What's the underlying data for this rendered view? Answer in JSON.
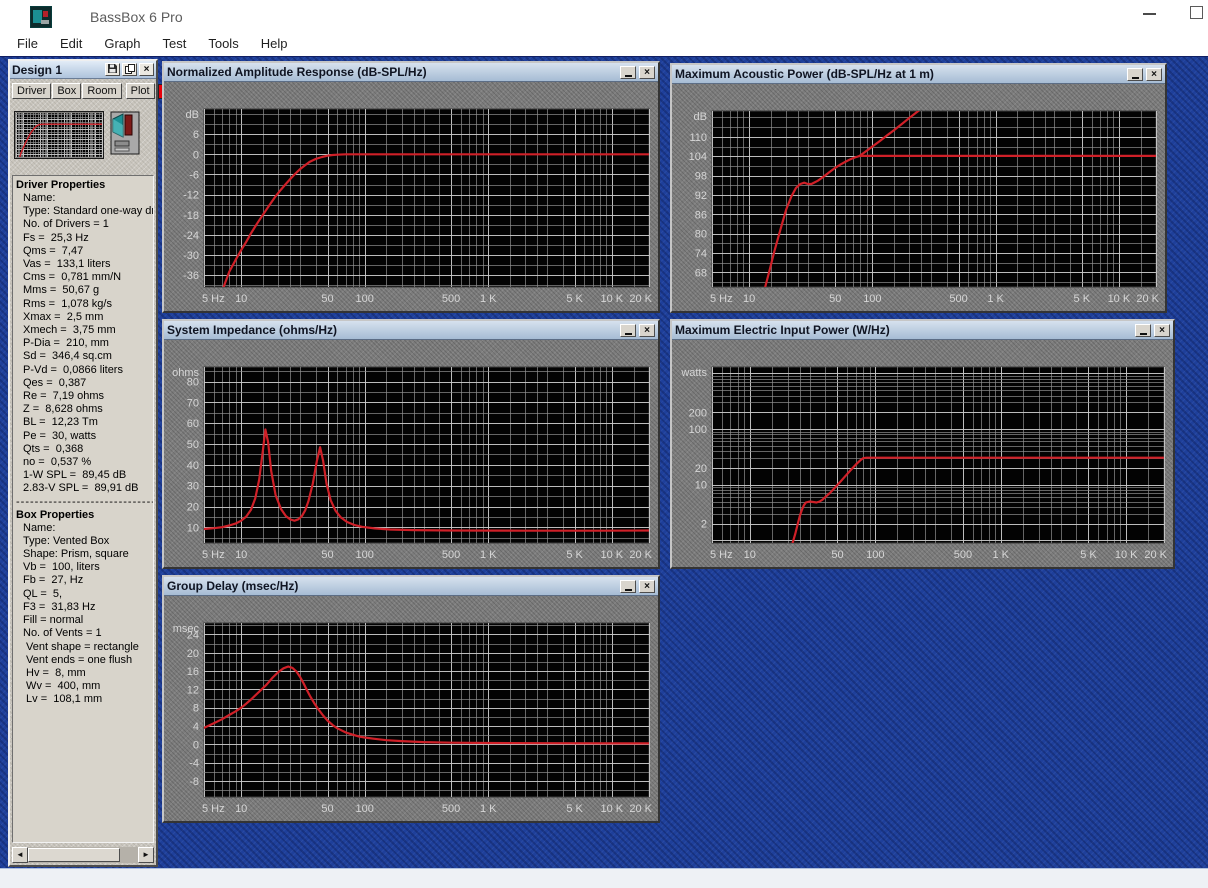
{
  "window": {
    "title": "BassBox 6 Pro"
  },
  "icons": {
    "close": "×",
    "scroll_left": "◄",
    "scroll_right": "►"
  },
  "menu": {
    "items": [
      "File",
      "Edit",
      "Graph",
      "Test",
      "Tools",
      "Help"
    ]
  },
  "design_panel": {
    "title": "Design 1",
    "tabs": [
      "Driver",
      "Box",
      "Room",
      "Plot"
    ],
    "driver_properties": {
      "header": "Driver Properties",
      "lines": [
        "Name:",
        "Type: Standard one-way driv",
        "No. of Drivers = 1",
        "Fs =  25,3 Hz",
        "Qms =  7,47",
        "Vas =  133,1 liters",
        "Cms =  0,781 mm/N",
        "Mms =  50,67 g",
        "Rms =  1,078 kg/s",
        "Xmax =  2,5 mm",
        "Xmech =  3,75 mm",
        "P-Dia =  210, mm",
        "Sd =  346,4 sq.cm",
        "P-Vd =  0,0866 liters",
        "Qes =  0,387",
        "Re =  7,19 ohms",
        "Z =  8,628 ohms",
        "BL =  12,23 Tm",
        "Pe =  30, watts",
        "Qts =  0,368",
        "no =  0,537 %",
        "1-W SPL =  89,45 dB",
        "2.83-V SPL =  89,91 dB"
      ]
    },
    "separator": "----------------------------------------",
    "box_properties": {
      "header": "Box Properties",
      "lines": [
        "Name:",
        "Type: Vented Box",
        "Shape: Prism, square",
        "Vb =  100, liters",
        "Fb =  27, Hz",
        "QL =  5,",
        "F3 =  31,83 Hz",
        "Fill = normal",
        "No. of Vents = 1",
        " Vent shape = rectangle",
        " Vent ends = one flush",
        " Hv =  8, mm",
        " Wv =  400, mm",
        " Lv =  108,1 mm"
      ]
    }
  },
  "colors": {
    "curve": "#d02028",
    "desktop": "#1e3f9a",
    "plot_bg": "#030303",
    "grid_minor": "#8f8f8f",
    "grid_major": "#c8c8c8",
    "tick_label": "#d6d6d6",
    "swatch_red": "#e8000a"
  },
  "chart_data": [
    {
      "id": "normalized-amplitude-response",
      "type": "line",
      "title": "Normalized Amplitude Response (dB-SPL/Hz)",
      "unit": "dB",
      "xscale": "log",
      "xlim": [
        5,
        20000
      ],
      "yscale": "linear",
      "ylim": [
        -39.5,
        13.5
      ],
      "yticks": [
        6,
        0,
        -6,
        -12,
        -18,
        -24,
        -30,
        -36
      ],
      "y_minor_step": 3,
      "xticks": [
        [
          5,
          "5 Hz"
        ],
        [
          10,
          "10"
        ],
        [
          50,
          "50"
        ],
        [
          100,
          "100"
        ],
        [
          500,
          "500"
        ],
        [
          1000,
          "1 K"
        ],
        [
          5000,
          "5 K"
        ],
        [
          10000,
          "10 K"
        ],
        [
          20000,
          "20 K"
        ]
      ],
      "series": [
        {
          "name": "amplitude",
          "points": [
            [
              7.2,
              -39.5
            ],
            [
              8,
              -35
            ],
            [
              9,
              -31.5
            ],
            [
              10,
              -28.5
            ],
            [
              11,
              -26
            ],
            [
              12,
              -23.5
            ],
            [
              13.5,
              -20.5
            ],
            [
              15,
              -18
            ],
            [
              17,
              -15
            ],
            [
              19,
              -12.5
            ],
            [
              21,
              -10.5
            ],
            [
              23,
              -8.8
            ],
            [
              25,
              -7.3
            ],
            [
              27,
              -6
            ],
            [
              30,
              -4.4
            ],
            [
              33,
              -3.2
            ],
            [
              36,
              -2.2
            ],
            [
              40,
              -1.4
            ],
            [
              45,
              -0.8
            ],
            [
              50,
              -0.4
            ],
            [
              55,
              -0.2
            ],
            [
              60,
              -0.1
            ],
            [
              70,
              0
            ],
            [
              100,
              0
            ],
            [
              1000,
              0
            ],
            [
              20000,
              0
            ]
          ]
        }
      ]
    },
    {
      "id": "maximum-acoustic-power",
      "type": "line",
      "title": "Maximum Acoustic Power (dB-SPL/Hz at 1 m)",
      "unit": "dB",
      "xscale": "log",
      "xlim": [
        5,
        20000
      ],
      "yscale": "linear",
      "ylim": [
        63.5,
        118
      ],
      "yticks": [
        110,
        104,
        98,
        92,
        86,
        80,
        74,
        68
      ],
      "y_minor_step": 3,
      "xticks": [
        [
          5,
          "5 Hz"
        ],
        [
          10,
          "10"
        ],
        [
          50,
          "50"
        ],
        [
          100,
          "100"
        ],
        [
          500,
          "500"
        ],
        [
          1000,
          "1 K"
        ],
        [
          5000,
          "5 K"
        ],
        [
          10000,
          "10 K"
        ],
        [
          20000,
          "20 K"
        ]
      ],
      "series": [
        {
          "name": "excursion-limited",
          "points": [
            [
              13.5,
              63.5
            ],
            [
              14.5,
              68
            ],
            [
              16,
              74.5
            ],
            [
              18,
              81.5
            ],
            [
              20,
              87.5
            ],
            [
              22,
              91.5
            ],
            [
              24,
              94.2
            ],
            [
              26,
              95.4
            ],
            [
              28,
              95.8
            ],
            [
              30,
              95.4
            ],
            [
              32,
              95.4
            ],
            [
              34,
              95.9
            ],
            [
              36,
              96.4
            ],
            [
              40,
              97.6
            ],
            [
              45,
              99.1
            ],
            [
              50,
              100.4
            ],
            [
              55,
              101.4
            ],
            [
              60,
              102.2
            ],
            [
              66,
              103
            ],
            [
              72,
              103.6
            ],
            [
              79,
              104.1
            ]
          ]
        },
        {
          "name": "thermal-limit-flat",
          "points": [
            [
              79,
              104.1
            ],
            [
              20000,
              104.1
            ]
          ]
        },
        {
          "name": "excursion-rising",
          "points": [
            [
              79,
              104.1
            ],
            [
              90,
              105.7
            ],
            [
              100,
              107
            ],
            [
              115,
              108.7
            ],
            [
              130,
              110.3
            ],
            [
              150,
              112.1
            ],
            [
              175,
              114.1
            ],
            [
              200,
              115.9
            ],
            [
              230,
              117.7
            ],
            [
              245,
              118.5
            ]
          ]
        }
      ]
    },
    {
      "id": "system-impedance",
      "type": "line",
      "title": "System Impedance (ohms/Hz)",
      "unit": "ohms",
      "xscale": "log",
      "xlim": [
        5,
        20000
      ],
      "yscale": "linear",
      "ylim": [
        2.5,
        87
      ],
      "yticks": [
        80,
        70,
        60,
        50,
        40,
        30,
        20,
        10
      ],
      "y_minor_step": 5,
      "xticks": [
        [
          5,
          "5 Hz"
        ],
        [
          10,
          "10"
        ],
        [
          50,
          "50"
        ],
        [
          100,
          "100"
        ],
        [
          500,
          "500"
        ],
        [
          1000,
          "1 K"
        ],
        [
          5000,
          "5 K"
        ],
        [
          10000,
          "10 K"
        ],
        [
          20000,
          "20 K"
        ]
      ],
      "series": [
        {
          "name": "impedance",
          "points": [
            [
              5,
              9.2
            ],
            [
              6,
              9.6
            ],
            [
              7,
              10.1
            ],
            [
              8,
              10.9
            ],
            [
              9,
              11.8
            ],
            [
              10,
              13.2
            ],
            [
              11,
              15.2
            ],
            [
              12,
              18.5
            ],
            [
              13,
              24
            ],
            [
              14,
              33
            ],
            [
              15,
              47
            ],
            [
              15.7,
              57
            ],
            [
              16.5,
              51
            ],
            [
              17.5,
              37
            ],
            [
              19,
              25.5
            ],
            [
              21,
              18.8
            ],
            [
              23,
              15.4
            ],
            [
              25,
              13.8
            ],
            [
              27,
              13.2
            ],
            [
              29,
              13.9
            ],
            [
              31,
              15.4
            ],
            [
              33,
              18.2
            ],
            [
              35,
              22.5
            ],
            [
              38,
              31
            ],
            [
              41,
              42
            ],
            [
              43.5,
              48.5
            ],
            [
              46,
              42
            ],
            [
              49,
              31
            ],
            [
              53,
              23
            ],
            [
              58,
              18
            ],
            [
              64,
              14.8
            ],
            [
              72,
              12.6
            ],
            [
              82,
              11.2
            ],
            [
              95,
              10.3
            ],
            [
              120,
              9.5
            ],
            [
              160,
              9
            ],
            [
              250,
              8.7
            ],
            [
              500,
              8.5
            ],
            [
              2000,
              8.4
            ],
            [
              8000,
              8.4
            ],
            [
              20000,
              8.5
            ]
          ]
        }
      ]
    },
    {
      "id": "maximum-electric-input-power",
      "type": "line",
      "title": "Maximum Electric Input Power (W/Hz)",
      "unit": "watts",
      "xscale": "log",
      "xlim": [
        5,
        20000
      ],
      "yscale": "log",
      "ylim": [
        0.9,
        1300
      ],
      "yticks": [
        200,
        100,
        20,
        10,
        2
      ],
      "xticks": [
        [
          5,
          "5 Hz"
        ],
        [
          10,
          "10"
        ],
        [
          50,
          "50"
        ],
        [
          100,
          "100"
        ],
        [
          500,
          "500"
        ],
        [
          1000,
          "1 K"
        ],
        [
          5000,
          "5 K"
        ],
        [
          10000,
          "10 K"
        ],
        [
          20000,
          "20 K"
        ]
      ],
      "series": [
        {
          "name": "max-input-power",
          "points": [
            [
              22,
              0.92
            ],
            [
              23,
              1.3
            ],
            [
              24,
              1.9
            ],
            [
              25,
              2.7
            ],
            [
              26,
              3.5
            ],
            [
              27,
              4.3
            ],
            [
              28,
              4.8
            ],
            [
              30,
              5
            ],
            [
              32,
              4.9
            ],
            [
              34,
              4.8
            ],
            [
              36,
              5
            ],
            [
              38,
              5.4
            ],
            [
              40,
              6
            ],
            [
              44,
              7.3
            ],
            [
              48,
              9
            ],
            [
              53,
              11.5
            ],
            [
              58,
              14.5
            ],
            [
              64,
              18.5
            ],
            [
              70,
              23
            ],
            [
              76,
              27.5
            ],
            [
              80,
              30
            ],
            [
              85,
              30.6
            ],
            [
              100,
              30.6
            ],
            [
              1000,
              30.6
            ],
            [
              20000,
              30.6
            ]
          ]
        }
      ]
    },
    {
      "id": "group-delay",
      "type": "line",
      "title": "Group Delay (msec/Hz)",
      "unit": "msec",
      "xscale": "log",
      "xlim": [
        5,
        20000
      ],
      "yscale": "linear",
      "ylim": [
        -11.5,
        26.5
      ],
      "yticks": [
        24,
        20,
        16,
        12,
        8,
        4,
        0,
        -4,
        -8
      ],
      "y_minor_step": 2,
      "xticks": [
        [
          5,
          "5 Hz"
        ],
        [
          10,
          "10"
        ],
        [
          50,
          "50"
        ],
        [
          100,
          "100"
        ],
        [
          500,
          "500"
        ],
        [
          1000,
          "1 K"
        ],
        [
          5000,
          "5 K"
        ],
        [
          10000,
          "10 K"
        ],
        [
          20000,
          "20 K"
        ]
      ],
      "series": [
        {
          "name": "group-delay",
          "points": [
            [
              5,
              3.6
            ],
            [
              6,
              4.6
            ],
            [
              7,
              5.5
            ],
            [
              8,
              6.4
            ],
            [
              9,
              7.2
            ],
            [
              10,
              8
            ],
            [
              11,
              8.9
            ],
            [
              12,
              9.8
            ],
            [
              14,
              11.5
            ],
            [
              16,
              13
            ],
            [
              18,
              14.6
            ],
            [
              20,
              15.8
            ],
            [
              22,
              16.6
            ],
            [
              24,
              17
            ],
            [
              26,
              16.7
            ],
            [
              28,
              15.9
            ],
            [
              30,
              14.7
            ],
            [
              32,
              13.3
            ],
            [
              34,
              11.9
            ],
            [
              36,
              10.6
            ],
            [
              39,
              9
            ],
            [
              42,
              7.7
            ],
            [
              46,
              6.3
            ],
            [
              50,
              5.2
            ],
            [
              55,
              4.2
            ],
            [
              60,
              3.5
            ],
            [
              70,
              2.6
            ],
            [
              80,
              2.1
            ],
            [
              90,
              1.7
            ],
            [
              100,
              1.5
            ],
            [
              120,
              1.2
            ],
            [
              150,
              0.9
            ],
            [
              200,
              0.7
            ],
            [
              300,
              0.5
            ],
            [
              500,
              0.35
            ],
            [
              1000,
              0.3
            ],
            [
              3000,
              0.25
            ],
            [
              10000,
              0.2
            ],
            [
              20000,
              0.2
            ]
          ]
        }
      ]
    }
  ]
}
